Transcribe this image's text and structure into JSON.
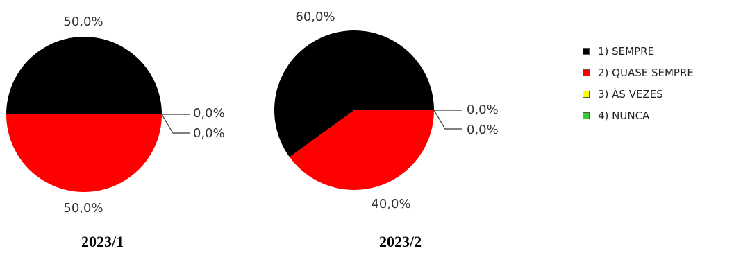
{
  "chart_data": [
    {
      "type": "pie",
      "title": "2023/1",
      "categories": [
        "1) SEMPRE",
        "2) QUASE SEMPRE",
        "3) ÀS VEZES",
        "4) NUNCA"
      ],
      "values": [
        50.0,
        50.0,
        0.0,
        0.0
      ],
      "labels": [
        "50,0%",
        "50,0%",
        "0,0%",
        "0,0%"
      ]
    },
    {
      "type": "pie",
      "title": "2023/2",
      "categories": [
        "1) SEMPRE",
        "2) QUASE SEMPRE",
        "3) ÀS VEZES",
        "4) NUNCA"
      ],
      "values": [
        60.0,
        40.0,
        0.0,
        0.0
      ],
      "labels": [
        "60,0%",
        "40,0%",
        "0,0%",
        "0,0%"
      ]
    }
  ],
  "legend": {
    "position": "right",
    "items": [
      {
        "label": "1) SEMPRE",
        "color": "#000000"
      },
      {
        "label": "2) QUASE SEMPRE",
        "color": "#ff0000"
      },
      {
        "label": "3) ÀS VEZES",
        "color": "#ffff00"
      },
      {
        "label": "4) NUNCA",
        "color": "#33cc33"
      }
    ]
  }
}
